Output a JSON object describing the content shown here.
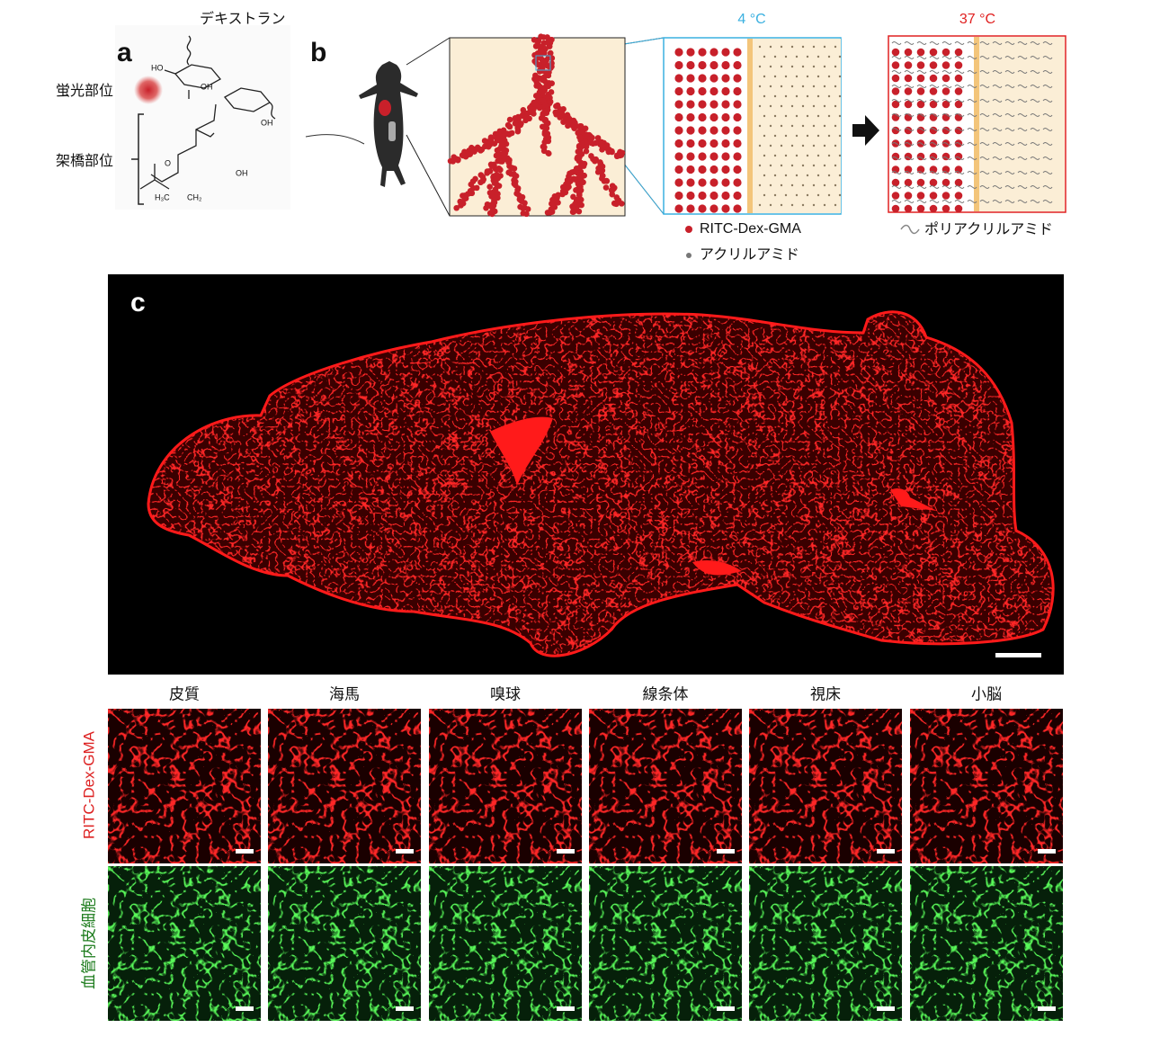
{
  "panel_a": {
    "label": "a",
    "dextran": "デキストラン",
    "fluorescent_site": "蛍光部位",
    "crosslink_site": "架橋部位",
    "chem_labels": [
      "HO",
      "OH",
      "OH",
      "OH",
      "O",
      "H₃C",
      "CH₂"
    ]
  },
  "panel_b": {
    "label": "b",
    "temp_low": "4 °C",
    "temp_high": "37 °C",
    "legend": [
      "RITC-Dex-GMA",
      "アクリルアミド"
    ],
    "polymer_legend": "ポリアクリルアミド"
  },
  "panel_c": {
    "label": "c",
    "regions": [
      "皮質",
      "海馬",
      "嗅球",
      "線条体",
      "視床",
      "小脳"
    ],
    "rows": [
      "RITC-Dex-GMA",
      "血管内皮細胞"
    ]
  }
}
